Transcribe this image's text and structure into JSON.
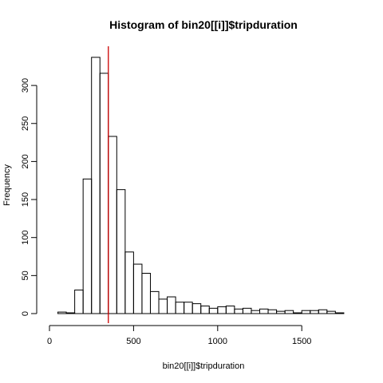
{
  "chart_data": {
    "type": "bar",
    "title": "Histogram of bin20[[i]]$tripduration",
    "xlabel": "bin20[[i]]$tripduration",
    "ylabel": "Frequency",
    "bin_width": 50,
    "bin_starts": [
      50,
      100,
      150,
      200,
      250,
      300,
      350,
      400,
      450,
      500,
      550,
      600,
      650,
      700,
      750,
      800,
      850,
      900,
      950,
      1000,
      1050,
      1100,
      1150,
      1200,
      1250,
      1300,
      1350,
      1400,
      1450,
      1500,
      1550,
      1600,
      1650,
      1700
    ],
    "values": [
      2,
      1,
      31,
      177,
      337,
      316,
      233,
      163,
      81,
      65,
      53,
      29,
      19,
      22,
      15,
      15,
      13,
      10,
      7,
      9,
      10,
      6,
      7,
      4,
      6,
      5,
      3,
      4,
      1,
      4,
      4,
      5,
      3,
      1
    ],
    "xlim": [
      0,
      1750
    ],
    "ylim": [
      0,
      350
    ],
    "x_ticks": [
      0,
      500,
      1000,
      1500
    ],
    "y_ticks": [
      0,
      50,
      100,
      150,
      200,
      250,
      300
    ],
    "vline": 350,
    "vline_color": "#cc0000",
    "grid": false
  }
}
